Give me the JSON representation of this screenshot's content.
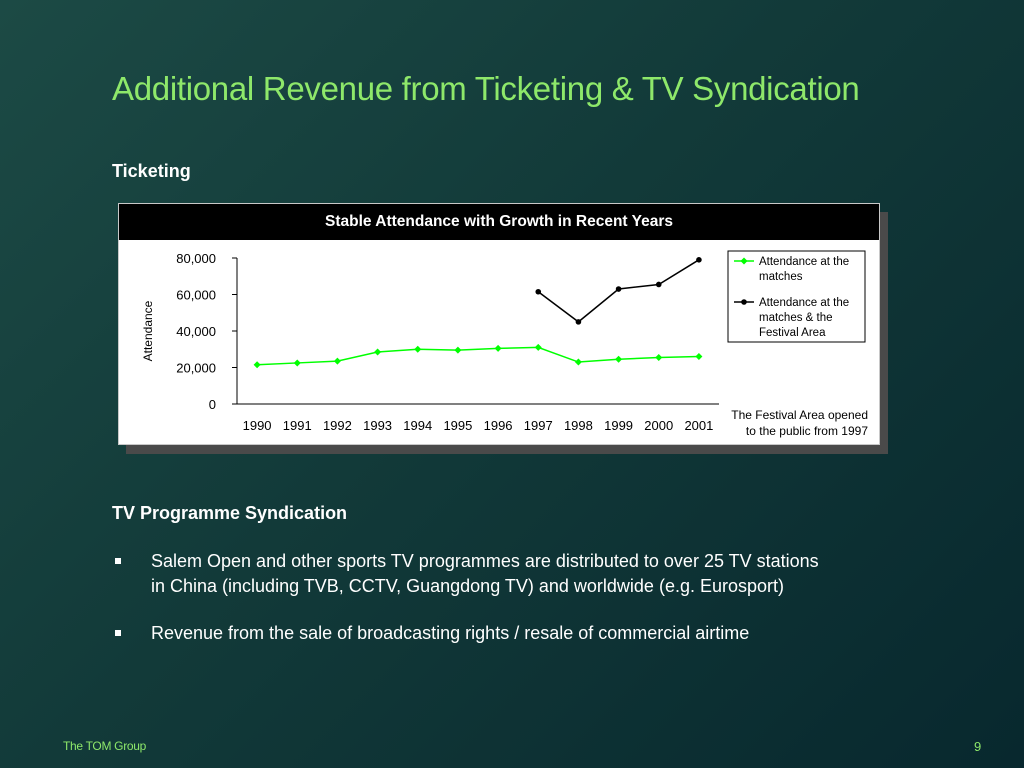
{
  "slide": {
    "title": "Additional Revenue from Ticketing & TV Syndication",
    "ticketing_heading": "Ticketing",
    "tv_heading": "TV Programme Syndication",
    "bullets": [
      {
        "line1": "Salem Open and other sports TV programmes are distributed to over 25 TV stations",
        "line2": "in China (including TVB, CCTV, Guangdong TV) and worldwide (e.g. Eurosport)"
      },
      {
        "line1": "Revenue from the sale of broadcasting rights / resale of commercial airtime",
        "line2": ""
      }
    ],
    "footer_brand": "The TOM Group",
    "page_number": "9"
  },
  "colors": {
    "title": "#8ee86a",
    "series_green": "#00ff00",
    "series_black": "#000000"
  },
  "chart_data": {
    "type": "line",
    "title": "Stable Attendance with Growth in Recent Years",
    "xlabel": "",
    "ylabel": "Attendance",
    "categories": [
      "1990",
      "1991",
      "1992",
      "1993",
      "1994",
      "1995",
      "1996",
      "1997",
      "1998",
      "1999",
      "2000",
      "2001"
    ],
    "ylim": [
      0,
      80000
    ],
    "yticks": [
      0,
      20000,
      40000,
      60000,
      80000
    ],
    "ytick_labels": [
      "0",
      "20,000",
      "40,000",
      "60,000",
      "80,000"
    ],
    "grid": false,
    "legend_position": "top-right",
    "series": [
      {
        "name": "Attendance at the matches",
        "legend_lines": [
          "Attendance at the",
          "matches"
        ],
        "color": "#00ff00",
        "marker": "diamond",
        "values": [
          21500,
          22500,
          23500,
          28500,
          30000,
          29500,
          30500,
          31000,
          23000,
          24500,
          25500,
          26000
        ]
      },
      {
        "name": "Attendance at the matches & the Festival Area",
        "legend_lines": [
          "Attendance at the",
          "matches & the",
          "Festival Area"
        ],
        "color": "#000000",
        "marker": "circle",
        "values": [
          null,
          null,
          null,
          null,
          null,
          null,
          null,
          61500,
          45000,
          63000,
          65500,
          79000
        ]
      }
    ],
    "annotation": [
      "The Festival Area opened",
      "to the public from 1997"
    ]
  }
}
